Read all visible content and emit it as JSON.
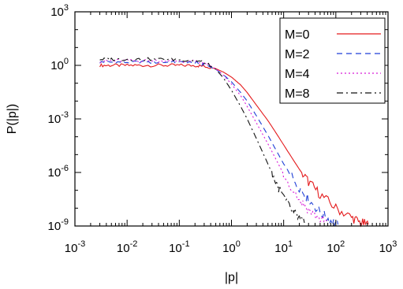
{
  "chart_data": {
    "type": "line",
    "title": "",
    "xlabel": "|p|",
    "ylabel": "P(|p|)",
    "xscale": "log",
    "yscale": "log",
    "xlim": [
      0.001,
      1000
    ],
    "ylim": [
      1e-09,
      1000
    ],
    "grid": false,
    "legend_position": "top-right",
    "x_ticks": [
      {
        "base": "10",
        "exp": "-3"
      },
      {
        "base": "10",
        "exp": "-2"
      },
      {
        "base": "10",
        "exp": "-1"
      },
      {
        "base": "10",
        "exp": "0"
      },
      {
        "base": "10",
        "exp": "1"
      },
      {
        "base": "10",
        "exp": "2"
      },
      {
        "base": "10",
        "exp": "3"
      }
    ],
    "y_ticks": [
      {
        "base": "10",
        "exp": "-9"
      },
      {
        "base": "10",
        "exp": "-6"
      },
      {
        "base": "10",
        "exp": "-3"
      },
      {
        "base": "10",
        "exp": "0"
      },
      {
        "base": "10",
        "exp": "3"
      }
    ],
    "series": [
      {
        "name": "M=0",
        "color": "#e41a1c",
        "dash": "solid",
        "points": [
          [
            0.003,
            1.0
          ],
          [
            0.005,
            1.0
          ],
          [
            0.01,
            1.0
          ],
          [
            0.02,
            1.0
          ],
          [
            0.05,
            1.0
          ],
          [
            0.1,
            1.0
          ],
          [
            0.2,
            0.98
          ],
          [
            0.3,
            0.9
          ],
          [
            0.5,
            0.65
          ],
          [
            0.7,
            0.42
          ],
          [
            1.0,
            0.22
          ],
          [
            1.5,
            0.08
          ],
          [
            2,
            0.03
          ],
          [
            3,
            0.006
          ],
          [
            5,
            0.0008
          ],
          [
            7,
            0.00018
          ],
          [
            10,
            3.5e-05
          ],
          [
            20,
            1.5e-06
          ],
          [
            30,
            3e-07
          ],
          [
            50,
            6e-08
          ],
          [
            100,
            1e-08
          ],
          [
            200,
            3e-09
          ],
          [
            300,
            1.5e-09
          ],
          [
            420,
            1.2e-09
          ]
        ]
      },
      {
        "name": "M=2",
        "color": "#1f3fd6",
        "dash": "dashed",
        "points": [
          [
            0.003,
            1.5
          ],
          [
            0.005,
            1.5
          ],
          [
            0.01,
            1.5
          ],
          [
            0.02,
            1.5
          ],
          [
            0.05,
            1.5
          ],
          [
            0.1,
            1.45
          ],
          [
            0.2,
            1.35
          ],
          [
            0.3,
            1.1
          ],
          [
            0.5,
            0.6
          ],
          [
            0.7,
            0.3
          ],
          [
            1.0,
            0.12
          ],
          [
            1.5,
            0.03
          ],
          [
            2,
            0.01
          ],
          [
            3,
            0.0015
          ],
          [
            5,
            0.00012
          ],
          [
            7,
            2e-05
          ],
          [
            10,
            3e-06
          ],
          [
            20,
            1.5e-07
          ],
          [
            30,
            3e-08
          ],
          [
            50,
            6e-09
          ],
          [
            80,
            2e-09
          ],
          [
            110,
            1.2e-09
          ]
        ]
      },
      {
        "name": "M=4",
        "color": "#d81bd8",
        "dash": "dotted",
        "points": [
          [
            0.003,
            1.8
          ],
          [
            0.005,
            1.8
          ],
          [
            0.01,
            1.8
          ],
          [
            0.02,
            1.8
          ],
          [
            0.05,
            1.8
          ],
          [
            0.1,
            1.75
          ],
          [
            0.2,
            1.6
          ],
          [
            0.3,
            1.3
          ],
          [
            0.5,
            0.65
          ],
          [
            0.7,
            0.28
          ],
          [
            1.0,
            0.09
          ],
          [
            1.5,
            0.02
          ],
          [
            2,
            0.005
          ],
          [
            3,
            0.0006
          ],
          [
            5,
            4e-05
          ],
          [
            7,
            6e-06
          ],
          [
            10,
            8e-07
          ],
          [
            20,
            3e-08
          ],
          [
            30,
            8e-09
          ],
          [
            50,
            2.5e-09
          ],
          [
            70,
            1.6e-09
          ]
        ]
      },
      {
        "name": "M=8",
        "color": "#111111",
        "dash": "dashdot",
        "points": [
          [
            0.003,
            2.2
          ],
          [
            0.005,
            2.2
          ],
          [
            0.01,
            2.2
          ],
          [
            0.02,
            2.2
          ],
          [
            0.05,
            2.2
          ],
          [
            0.1,
            2.1
          ],
          [
            0.2,
            1.9
          ],
          [
            0.3,
            1.5
          ],
          [
            0.5,
            0.6
          ],
          [
            0.7,
            0.2
          ],
          [
            1.0,
            0.04
          ],
          [
            1.5,
            0.005
          ],
          [
            2,
            0.001
          ],
          [
            3,
            8e-05
          ],
          [
            5,
            3e-06
          ],
          [
            7,
            3e-07
          ],
          [
            10,
            4e-08
          ],
          [
            15,
            6e-09
          ],
          [
            20,
            2.5e-09
          ],
          [
            25,
            1.5e-09
          ]
        ]
      }
    ]
  }
}
